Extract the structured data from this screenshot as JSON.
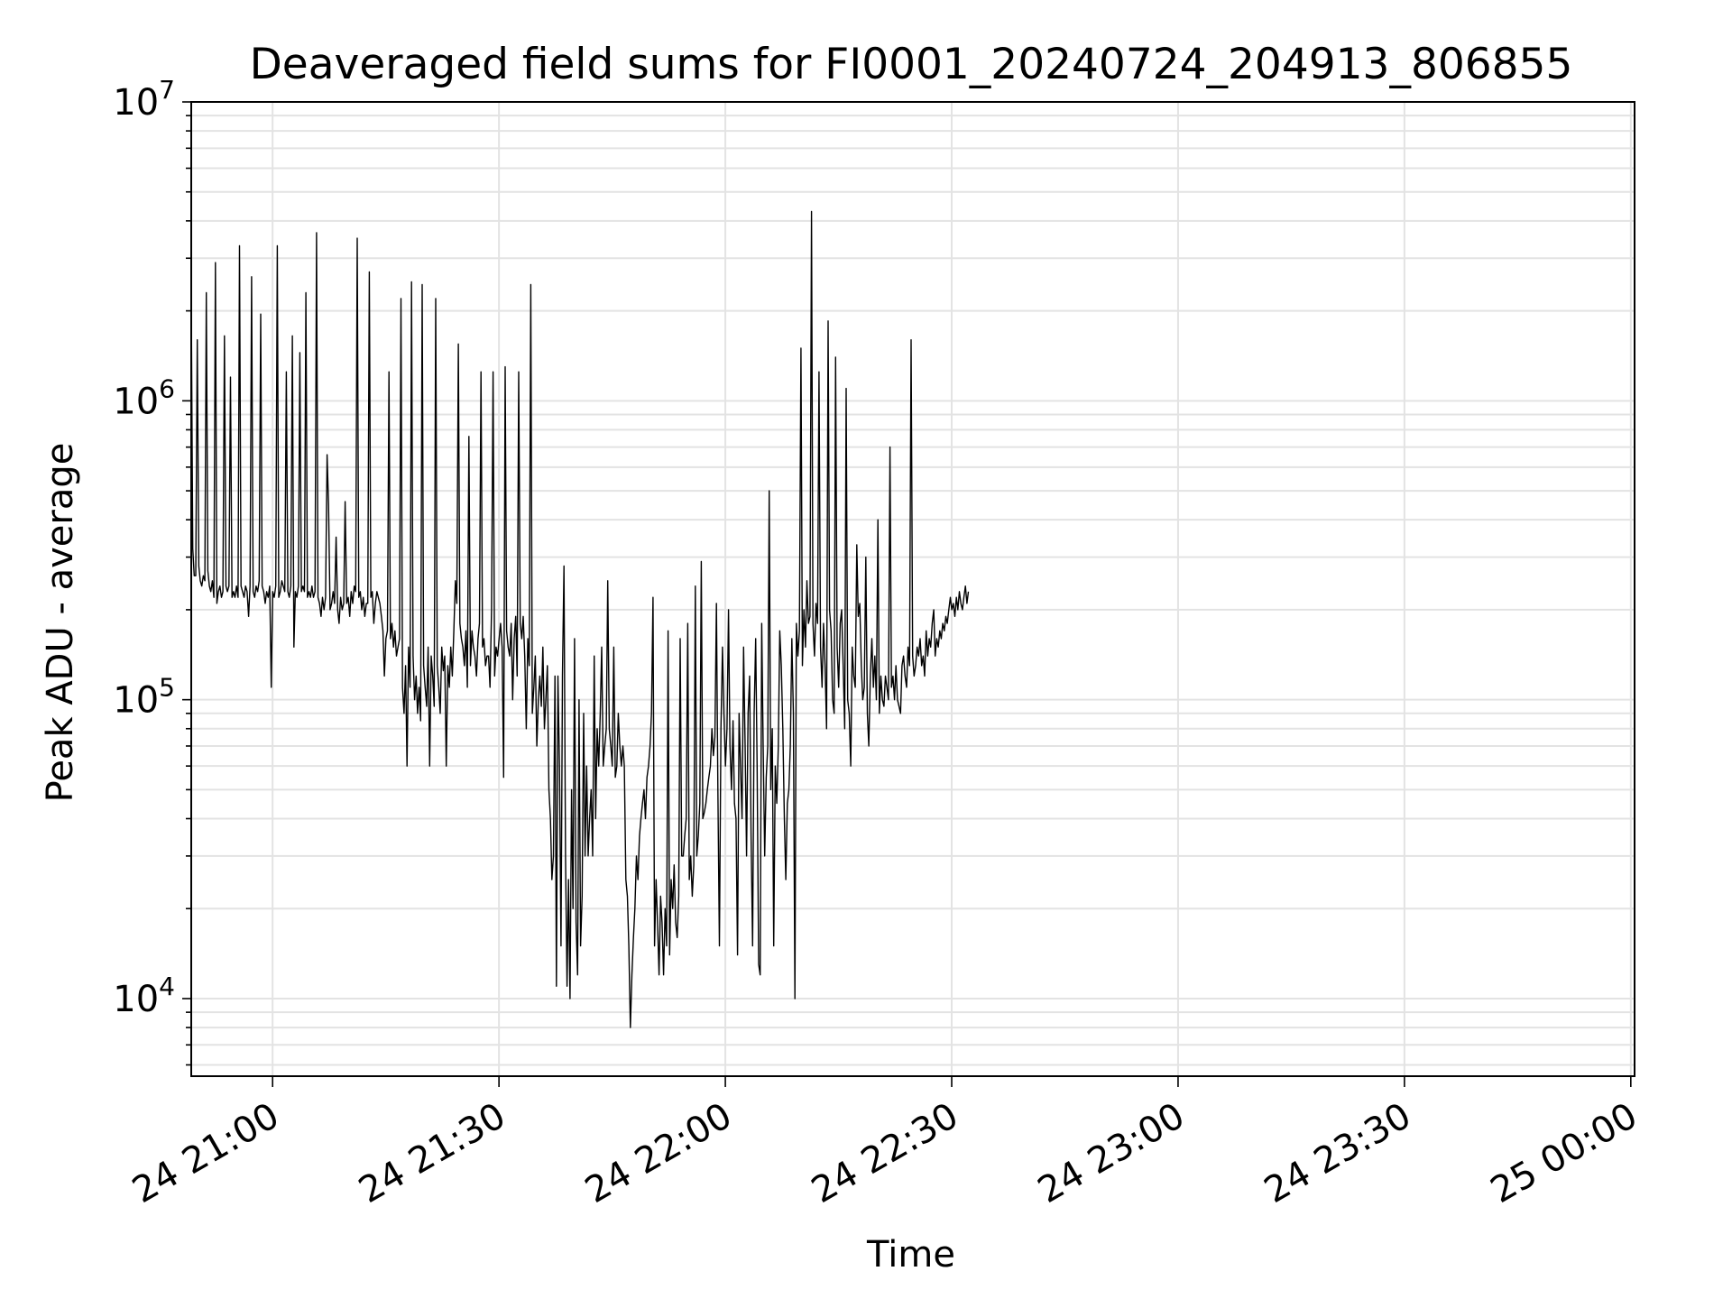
{
  "chart_data": {
    "type": "line",
    "title": "Deaveraged field sums for FI0001_20240724_204913_806855",
    "xlabel": "Time",
    "ylabel": "Peak ADU - average",
    "yscale": "log",
    "xlim": [
      "2024-07-24 20:49:13",
      "2024-07-25 00:00:30"
    ],
    "ylim": [
      5500,
      10000000
    ],
    "grid": true,
    "legend": "none",
    "line_color": "#000000",
    "x_ticks": [
      {
        "t": "2024-07-24 21:00",
        "label": "24 21:00"
      },
      {
        "t": "2024-07-24 21:30",
        "label": "24 21:30"
      },
      {
        "t": "2024-07-24 22:00",
        "label": "24 22:00"
      },
      {
        "t": "2024-07-24 22:30",
        "label": "24 22:30"
      },
      {
        "t": "2024-07-24 23:00",
        "label": "24 23:00"
      },
      {
        "t": "2024-07-24 23:30",
        "label": "24 23:30"
      },
      {
        "t": "2024-07-25 00:00",
        "label": "25 00:00"
      }
    ],
    "y_ticks": [
      {
        "value": 10000,
        "base": "10",
        "exp": "4"
      },
      {
        "value": 100000,
        "base": "10",
        "exp": "5"
      },
      {
        "value": 1000000,
        "base": "10",
        "exp": "6"
      },
      {
        "value": 10000000,
        "base": "10",
        "exp": "7"
      }
    ],
    "series": [
      {
        "x_start": "2024-07-24 20:49:13",
        "interval_minutes": 0.2,
        "y": [
          2200000,
          320000,
          260000,
          260000,
          1600000,
          280000,
          250000,
          240000,
          260000,
          250000,
          2300000,
          270000,
          240000,
          230000,
          250000,
          220000,
          2900000,
          210000,
          230000,
          240000,
          220000,
          230000,
          1650000,
          240000,
          230000,
          240000,
          1200000,
          220000,
          230000,
          220000,
          240000,
          220000,
          3300000,
          240000,
          230000,
          220000,
          240000,
          230000,
          190000,
          240000,
          2600000,
          230000,
          220000,
          240000,
          230000,
          250000,
          1950000,
          240000,
          230000,
          210000,
          230000,
          220000,
          240000,
          110000,
          230000,
          220000,
          240000,
          3300000,
          220000,
          230000,
          250000,
          240000,
          230000,
          1250000,
          230000,
          220000,
          240000,
          1650000,
          150000,
          230000,
          220000,
          240000,
          1450000,
          230000,
          240000,
          230000,
          2300000,
          220000,
          230000,
          220000,
          240000,
          220000,
          230000,
          3650000,
          220000,
          210000,
          190000,
          220000,
          200000,
          220000,
          660000,
          450000,
          200000,
          210000,
          230000,
          210000,
          350000,
          200000,
          180000,
          220000,
          200000,
          210000,
          460000,
          210000,
          220000,
          190000,
          230000,
          210000,
          240000,
          230000,
          3500000,
          220000,
          230000,
          200000,
          220000,
          190000,
          210000,
          210000,
          2700000,
          220000,
          230000,
          180000,
          210000,
          230000,
          220000,
          210000,
          190000,
          170000,
          120000,
          160000,
          170000,
          1250000,
          160000,
          180000,
          150000,
          170000,
          140000,
          150000,
          160000,
          2200000,
          110000,
          90000,
          130000,
          60000,
          150000,
          110000,
          2500000,
          140000,
          100000,
          120000,
          90000,
          110000,
          85000,
          2450000,
          130000,
          110000,
          95000,
          150000,
          60000,
          140000,
          120000,
          95000,
          2200000,
          130000,
          110000,
          90000,
          150000,
          125000,
          140000,
          60000,
          130000,
          110000,
          150000,
          120000,
          170000,
          250000,
          210000,
          1550000,
          180000,
          160000,
          150000,
          130000,
          170000,
          110000,
          760000,
          130000,
          170000,
          150000,
          140000,
          120000,
          160000,
          180000,
          1250000,
          150000,
          160000,
          130000,
          140000,
          140000,
          110000,
          200000,
          1250000,
          120000,
          150000,
          140000,
          160000,
          180000,
          150000,
          55000,
          1300000,
          170000,
          150000,
          140000,
          180000,
          100000,
          160000,
          190000,
          120000,
          1250000,
          180000,
          160000,
          190000,
          140000,
          80000,
          160000,
          130000,
          2450000,
          90000,
          110000,
          140000,
          70000,
          100000,
          120000,
          95000,
          150000,
          80000,
          100000,
          130000,
          50000,
          40000,
          25000,
          30000,
          120000,
          11000,
          120000,
          60000,
          15000,
          120000,
          280000,
          30000,
          11000,
          25000,
          10000,
          50000,
          20000,
          160000,
          18000,
          12000,
          100000,
          15000,
          22000,
          90000,
          30000,
          60000,
          30000,
          40000,
          50000,
          30000,
          140000,
          40000,
          80000,
          60000,
          90000,
          150000,
          60000,
          70000,
          80000,
          250000,
          80000,
          70000,
          60000,
          150000,
          55000,
          60000,
          90000,
          70000,
          60000,
          70000,
          60000,
          25000,
          22000,
          15000,
          8000,
          12000,
          16000,
          20000,
          30000,
          25000,
          35000,
          40000,
          45000,
          50000,
          40000,
          55000,
          60000,
          70000,
          90000,
          220000,
          15000,
          25000,
          18000,
          12000,
          22000,
          18000,
          12000,
          20000,
          15000,
          170000,
          14000,
          25000,
          20000,
          28000,
          18000,
          16000,
          22000,
          160000,
          30000,
          30000,
          35000,
          40000,
          180000,
          25000,
          30000,
          22000,
          28000,
          240000,
          30000,
          35000,
          45000,
          290000,
          40000,
          42000,
          45000,
          50000,
          55000,
          60000,
          80000,
          65000,
          75000,
          210000,
          50000,
          15000,
          80000,
          150000,
          90000,
          60000,
          80000,
          200000,
          70000,
          50000,
          85000,
          45000,
          40000,
          14000,
          90000,
          60000,
          40000,
          150000,
          70000,
          30000,
          90000,
          120000,
          35000,
          15000,
          90000,
          160000,
          60000,
          13000,
          12000,
          180000,
          70000,
          30000,
          55000,
          70000,
          500000,
          50000,
          80000,
          15000,
          60000,
          45000,
          70000,
          170000,
          130000,
          80000,
          40000,
          25000,
          45000,
          50000,
          70000,
          160000,
          90000,
          10000,
          180000,
          140000,
          170000,
          1500000,
          130000,
          200000,
          150000,
          250000,
          180000,
          190000,
          4300000,
          180000,
          140000,
          210000,
          180000,
          1250000,
          150000,
          110000,
          180000,
          130000,
          80000,
          1850000,
          200000,
          170000,
          100000,
          90000,
          1400000,
          150000,
          110000,
          180000,
          200000,
          130000,
          80000,
          1100000,
          100000,
          90000,
          60000,
          150000,
          120000,
          110000,
          330000,
          190000,
          210000,
          130000,
          100000,
          110000,
          300000,
          90000,
          70000,
          120000,
          160000,
          110000,
          140000,
          100000,
          400000,
          90000,
          120000,
          100000,
          95000,
          120000,
          110000,
          100000,
          700000,
          110000,
          120000,
          100000,
          130000,
          100000,
          95000,
          90000,
          130000,
          140000,
          120000,
          110000,
          150000,
          130000,
          1600000,
          140000,
          120000,
          130000,
          150000,
          140000,
          160000,
          130000,
          140000,
          120000,
          170000,
          140000,
          160000,
          150000,
          180000,
          200000,
          140000,
          160000,
          150000,
          170000,
          160000,
          180000,
          170000,
          190000,
          180000,
          200000,
          220000,
          200000,
          210000,
          190000,
          220000,
          200000,
          230000,
          210000,
          200000,
          220000,
          240000,
          210000,
          230000
        ]
      }
    ]
  }
}
